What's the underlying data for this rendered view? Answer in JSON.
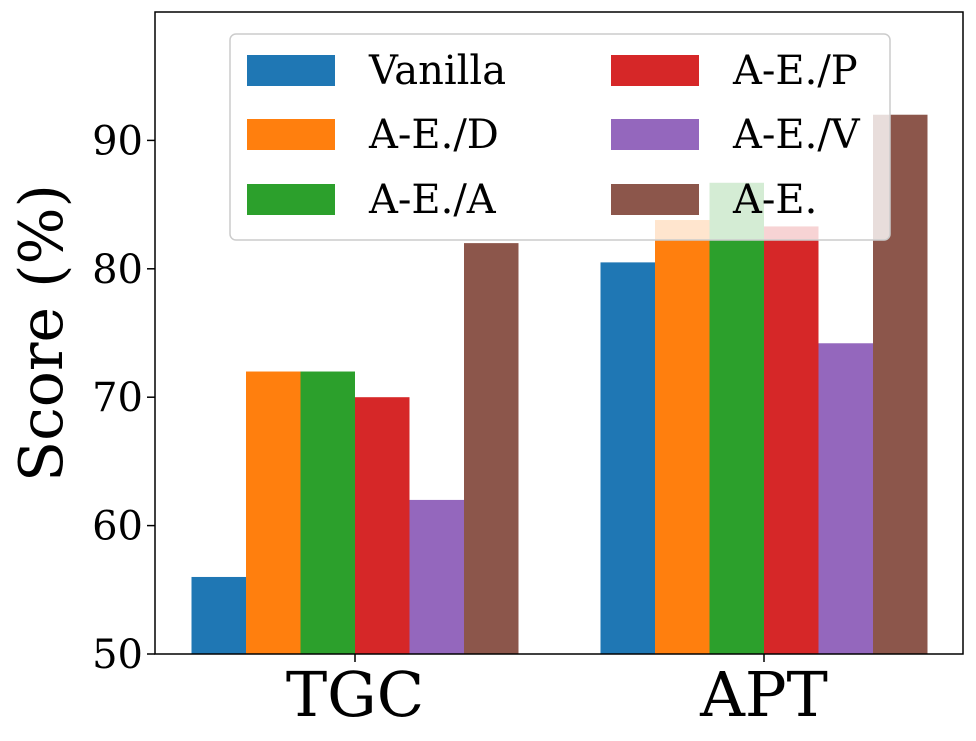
{
  "chart_data": {
    "type": "bar",
    "title": "",
    "xlabel": "",
    "ylabel": "Score (%)",
    "ylim": [
      50,
      100
    ],
    "yticks": [
      50,
      60,
      70,
      80,
      90
    ],
    "grid": false,
    "legend_position": "top",
    "categories": [
      "TGC",
      "APT"
    ],
    "series": [
      {
        "name": "Vanilla",
        "color": "#1f77b4",
        "values": [
          56,
          80.5
        ]
      },
      {
        "name": "A-E./D",
        "color": "#ff7f0e",
        "values": [
          72,
          83.8
        ]
      },
      {
        "name": "A-E./A",
        "color": "#2ca02c",
        "values": [
          72,
          86.7
        ]
      },
      {
        "name": "A-E./P",
        "color": "#d62728",
        "values": [
          70,
          83.3
        ]
      },
      {
        "name": "A-E./V",
        "color": "#9467bd",
        "values": [
          62,
          74.2
        ]
      },
      {
        "name": "A-E.",
        "color": "#8c564b",
        "values": [
          82,
          92
        ]
      }
    ]
  }
}
